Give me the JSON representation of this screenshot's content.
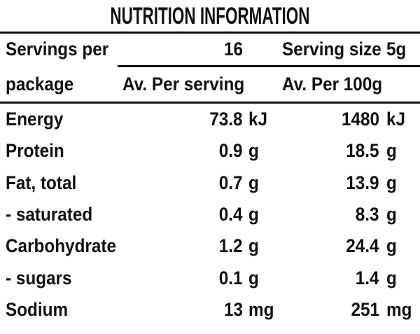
{
  "title": "NUTRITION INFORMATION",
  "header": {
    "servings_label_line1": "Servings per",
    "servings_label_line2": "package",
    "servings_count": "16",
    "serving_size_label": "Serving size",
    "serving_size_value": "5g",
    "col_per_serving": "Av. Per serving",
    "col_per_100g": "Av. Per 100g"
  },
  "rows": [
    {
      "label": "Energy",
      "per_serving": {
        "value": "73.8",
        "unit": "kJ"
      },
      "per_100g": {
        "value": "1480",
        "unit": "kJ"
      }
    },
    {
      "label": "Protein",
      "per_serving": {
        "value": "0.9",
        "unit": "g"
      },
      "per_100g": {
        "value": "18.5",
        "unit": "g"
      }
    },
    {
      "label": "Fat, total",
      "per_serving": {
        "value": "0.7",
        "unit": "g"
      },
      "per_100g": {
        "value": "13.9",
        "unit": "g"
      }
    },
    {
      "label": "- saturated",
      "per_serving": {
        "value": "0.4",
        "unit": "g"
      },
      "per_100g": {
        "value": "8.3",
        "unit": "g"
      }
    },
    {
      "label": "Carbohydrate",
      "per_serving": {
        "value": "1.2",
        "unit": "g"
      },
      "per_100g": {
        "value": "24.4",
        "unit": "g"
      }
    },
    {
      "label": "- sugars",
      "per_serving": {
        "value": "0.1",
        "unit": "g"
      },
      "per_100g": {
        "value": "1.4",
        "unit": "g"
      }
    },
    {
      "label": "Sodium",
      "per_serving": {
        "value": "13",
        "unit": "mg"
      },
      "per_100g": {
        "value": "251",
        "unit": "mg"
      }
    }
  ],
  "colors": {
    "text": "#111111",
    "rule": "#111111",
    "background": "#ffffff"
  }
}
